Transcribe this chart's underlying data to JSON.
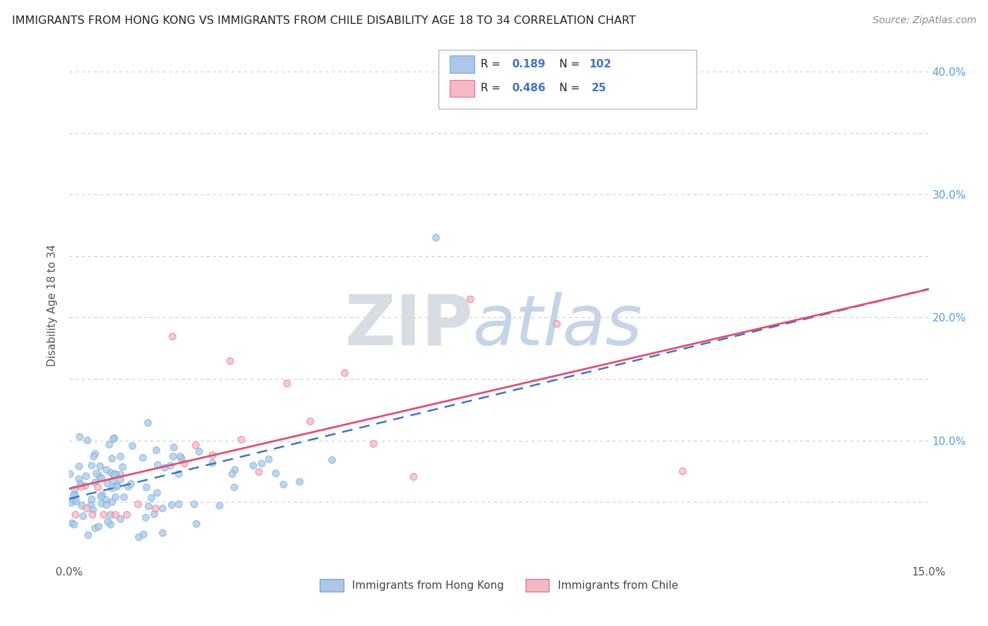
{
  "title": "IMMIGRANTS FROM HONG KONG VS IMMIGRANTS FROM CHILE DISABILITY AGE 18 TO 34 CORRELATION CHART",
  "source": "Source: ZipAtlas.com",
  "ylabel": "Disability Age 18 to 34",
  "xlim": [
    0.0,
    0.15
  ],
  "ylim": [
    0.0,
    0.42
  ],
  "background_color": "#ffffff",
  "grid_color": "#cccccc",
  "hk_color": "#aec6e8",
  "hk_edge_color": "#6baed6",
  "chile_color": "#f4b8c8",
  "chile_edge_color": "#e07090",
  "hk_line_color": "#4472c4",
  "chile_line_color": "#e05070",
  "R_hk": 0.189,
  "N_hk": 102,
  "R_chile": 0.486,
  "N_chile": 25,
  "legend_hk": "Immigrants from Hong Kong",
  "legend_chile": "Immigrants from Chile",
  "ytick_positions": [
    0.0,
    0.05,
    0.1,
    0.15,
    0.2,
    0.25,
    0.3,
    0.35,
    0.4
  ],
  "ytick_right_labels": [
    "",
    "",
    "10.0%",
    "",
    "20.0%",
    "",
    "30.0%",
    "",
    "40.0%"
  ]
}
